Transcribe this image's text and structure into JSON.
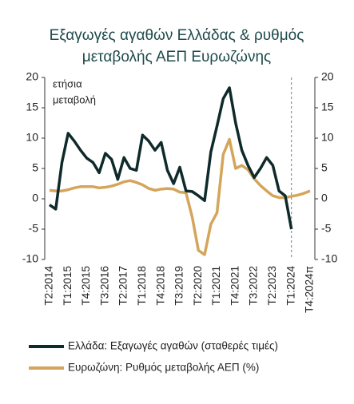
{
  "chart_data": {
    "type": "line",
    "title": [
      "Εξαγωγές αγαθών Ελλάδας & ρυθμός",
      "μεταβολής ΑΕΠ Ευρωζώνης"
    ],
    "annotation": [
      "ετήσια",
      "μεταβολή"
    ],
    "categories": [
      "T2:2014",
      null,
      null,
      "T1:2015",
      null,
      null,
      "T4:2015",
      null,
      null,
      "T3:2016",
      null,
      null,
      "T2:2017",
      null,
      null,
      "T1:2018",
      null,
      null,
      "T4:2018",
      null,
      null,
      "T3:2019",
      null,
      null,
      "T2:2020",
      null,
      null,
      "T1:2021",
      null,
      null,
      "T4:2021",
      null,
      null,
      "T3:2022",
      null,
      null,
      "T2:2023",
      null,
      null,
      "T1:2024",
      null,
      null,
      "T4:2024π"
    ],
    "series": [
      {
        "name": "Ελλάδα: Εξαγωγές αγαθών (σταθερές τιμές)",
        "color": "#0f2a2a",
        "values": [
          -1,
          -1.7,
          6,
          10.8,
          9.5,
          8,
          6.7,
          6,
          4.3,
          7.5,
          6.5,
          3.2,
          6.8,
          5,
          4.7,
          10.5,
          9.5,
          8,
          9.3,
          4.7,
          2.5,
          5.2,
          1.3,
          1.2,
          0.5,
          -0.3,
          7.7,
          12,
          16.5,
          18.3,
          12.5,
          8,
          5.5,
          3.5,
          5,
          6.8,
          5.5,
          1.3,
          0.5,
          -5,
          null,
          null,
          null
        ]
      },
      {
        "name": "Ευρωζώνη: Ρυθμός μεταβολής ΑΕΠ (%)",
        "color": "#d4a55a",
        "values": [
          1.4,
          1.3,
          1.3,
          1.5,
          1.8,
          2.0,
          2.0,
          2.0,
          1.8,
          1.9,
          2.1,
          2.4,
          2.8,
          3.0,
          2.7,
          2.3,
          1.7,
          1.4,
          1.6,
          1.7,
          1.6,
          1.1,
          1.0,
          -3.0,
          -8.5,
          -9.2,
          -4.2,
          -2.3,
          7.3,
          9.8,
          5.0,
          5.5,
          4.8,
          3.3,
          2.2,
          1.3,
          0.5,
          0.2,
          0.2,
          0.4,
          0.6,
          0.9,
          1.3
        ]
      }
    ],
    "ylim": [
      -10,
      20
    ],
    "yticks": [
      -10,
      -5,
      0,
      5,
      10,
      15,
      20
    ],
    "y2lim": [
      -10,
      20
    ],
    "y2ticks": [
      -10,
      -5,
      0,
      5,
      10,
      15,
      20
    ],
    "divider_index": 39
  }
}
